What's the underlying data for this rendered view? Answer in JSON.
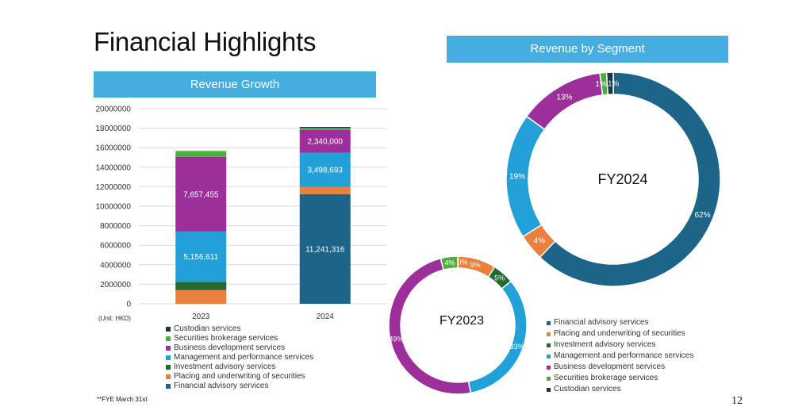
{
  "page": {
    "title": "Financial Highlights",
    "page_number": "12",
    "footnote": "**FYE March 31st"
  },
  "banners": {
    "growth": "Revenue Growth",
    "segment": "Revenue by Segment"
  },
  "colors": {
    "Financial advisory services": "#1c6488",
    "Placing and underwriting of securities": "#e9803b",
    "Investment advisory services": "#216b2d",
    "Management and performance services": "#22a1d8",
    "Business development services": "#9c2f9a",
    "Securities brokerage services": "#4caf3c",
    "Custodian services": "#17364a"
  },
  "chart_data": [
    {
      "type": "bar",
      "stacked": true,
      "title": "Revenue Growth",
      "unit_label": "(Unit: HKD)",
      "categories": [
        "2023",
        "2024"
      ],
      "ylim": [
        0,
        20000000
      ],
      "yticks": [
        "0",
        "2000000",
        "4000000",
        "6000000",
        "8000000",
        "10000000",
        "12000000",
        "14000000",
        "16000000",
        "18000000",
        "20000000"
      ],
      "grid": true,
      "series": [
        {
          "name": "Financial advisory services",
          "values": [
            0,
            11241316
          ]
        },
        {
          "name": "Placing and underwriting of securities",
          "values": [
            1400000,
            750000
          ]
        },
        {
          "name": "Investment advisory services",
          "values": [
            850000,
            0
          ]
        },
        {
          "name": "Management and performance services",
          "values": [
            5156611,
            3498693
          ]
        },
        {
          "name": "Business development services",
          "values": [
            7657455,
            2340000
          ]
        },
        {
          "name": "Securities brokerage services",
          "values": [
            600000,
            200000
          ]
        },
        {
          "name": "Custodian services",
          "values": [
            0,
            100000
          ]
        }
      ],
      "data_labels": [
        {
          "category": "2024",
          "series": "Financial advisory services",
          "text": "11,241,316"
        },
        {
          "category": "2023",
          "series": "Management and performance services",
          "text": "5,156,611"
        },
        {
          "category": "2024",
          "series": "Management and performance services",
          "text": "3,498,693"
        },
        {
          "category": "2023",
          "series": "Business development services",
          "text": "7,657,455"
        },
        {
          "category": "2024",
          "series": "Business development services",
          "text": "2,340,000"
        }
      ],
      "legend_items": [
        "Custodian services",
        "Securities brokerage services",
        "Business development services",
        "Management and performance services",
        "Investment advisory services",
        "Placing and underwriting of securities",
        "Financial advisory services"
      ],
      "legend_position": "bottom"
    },
    {
      "type": "pie",
      "donut": true,
      "title": "FY2024",
      "slices": [
        {
          "name": "Financial advisory services",
          "value": 62,
          "label": "62%"
        },
        {
          "name": "Placing and underwriting of securities",
          "value": 4,
          "label": "4%"
        },
        {
          "name": "Investment advisory services",
          "value": 0,
          "label": "0%"
        },
        {
          "name": "Management and performance services",
          "value": 19,
          "label": "19%"
        },
        {
          "name": "Business development services",
          "value": 13,
          "label": "13%"
        },
        {
          "name": "Securities brokerage services",
          "value": 1,
          "label": "1%"
        },
        {
          "name": "Custodian services",
          "value": 1,
          "label": "1%"
        }
      ]
    },
    {
      "type": "pie",
      "donut": true,
      "title": "FY2023",
      "slices": [
        {
          "name": "Financial advisory services",
          "value": 0,
          "label": "0%"
        },
        {
          "name": "Placing and underwriting of securities",
          "value": 9,
          "label": "9%"
        },
        {
          "name": "Investment advisory services",
          "value": 5,
          "label": "5%"
        },
        {
          "name": "Management and performance services",
          "value": 33,
          "label": "33%"
        },
        {
          "name": "Business development services",
          "value": 49,
          "label": "49%"
        },
        {
          "name": "Securities brokerage services",
          "value": 4,
          "label": "4%"
        },
        {
          "name": "Custodian services",
          "value": 0,
          "label": "0%"
        }
      ],
      "legend_items": [
        "Financial advisory services",
        "Placing and underwriting of securities",
        "Investment advisory services",
        "Management and performance services",
        "Business development services",
        "Securities brokerage services",
        "Custodian services"
      ],
      "legend_position": "right"
    }
  ]
}
